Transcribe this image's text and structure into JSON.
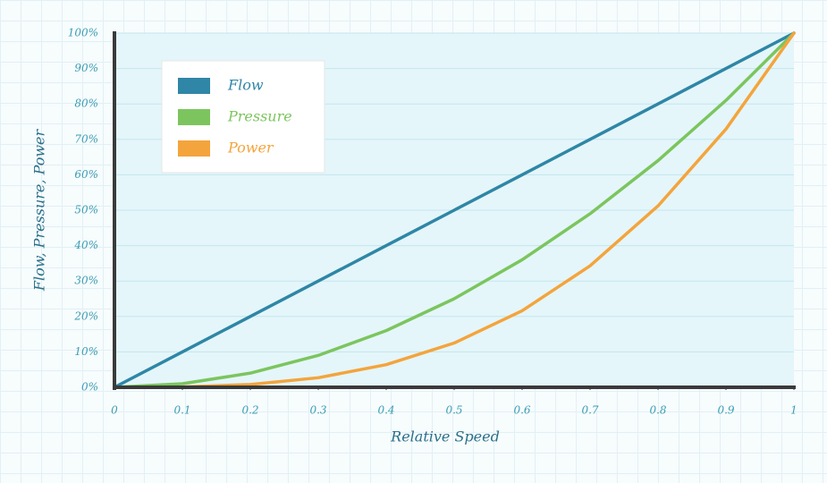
{
  "chart_data": {
    "type": "line",
    "x_label": "Relative Speed",
    "y_label": "Flow, Pressure, Power",
    "x": [
      0,
      0.1,
      0.2,
      0.3,
      0.4,
      0.5,
      0.6,
      0.7,
      0.8,
      0.9,
      1
    ],
    "series": [
      {
        "name": "Flow",
        "color": "#2f86a6",
        "values": [
          0,
          10,
          20,
          30,
          40,
          50,
          60,
          70,
          80,
          90,
          100
        ]
      },
      {
        "name": "Pressure",
        "color": "#7cc55e",
        "values": [
          0,
          1,
          4,
          9,
          16,
          25,
          36,
          49,
          64,
          81,
          100
        ]
      },
      {
        "name": "Power",
        "color": "#f4a43c",
        "values": [
          0,
          0.1,
          0.8,
          2.7,
          6.4,
          12.5,
          21.6,
          34.3,
          51.2,
          72.9,
          100
        ]
      }
    ],
    "xlim": [
      0,
      1
    ],
    "xticks": [
      0,
      0.1,
      0.2,
      0.3,
      0.4,
      0.5,
      0.6,
      0.7,
      0.8,
      0.9,
      1
    ],
    "ylim": [
      0,
      100
    ],
    "yticks": [
      {
        "value": 0,
        "label": "0%"
      },
      {
        "value": 10,
        "label": "10%"
      },
      {
        "value": 20,
        "label": "20%"
      },
      {
        "value": 30,
        "label": "30%"
      },
      {
        "value": 40,
        "label": "40%"
      },
      {
        "value": 50,
        "label": "50%"
      },
      {
        "value": 60,
        "label": "60%"
      },
      {
        "value": 70,
        "label": "70%"
      },
      {
        "value": 80,
        "label": "80%"
      },
      {
        "value": 90,
        "label": "90%"
      },
      {
        "value": 100,
        "label": "100%"
      }
    ],
    "grid": true,
    "legend": "upper left"
  }
}
